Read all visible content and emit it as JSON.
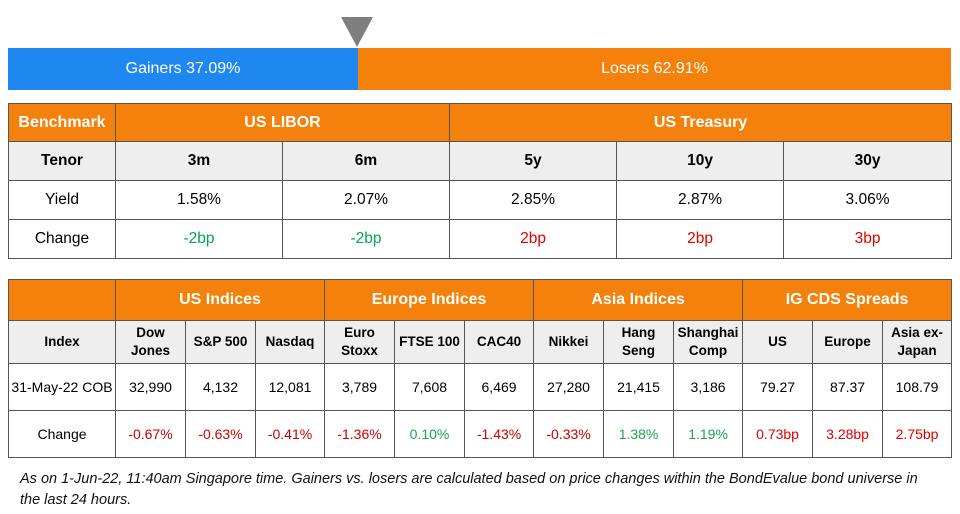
{
  "breadth": {
    "gainers_label": "Gainers 37.09%",
    "losers_label": "Losers 62.91%",
    "gainers_share": 0.3709,
    "colors": {
      "gainers": "#1e88f0",
      "losers": "#f4810b",
      "marker": "#7f7f7f"
    }
  },
  "rates": {
    "header": {
      "benchmark": "Benchmark",
      "libor": "US LIBOR",
      "treasury": "US Treasury"
    },
    "tenor_label": "Tenor",
    "tenors": [
      "3m",
      "6m",
      "5y",
      "10y",
      "30y"
    ],
    "yield_label": "Yield",
    "yields": [
      "1.58%",
      "2.07%",
      "2.85%",
      "2.87%",
      "3.06%"
    ],
    "change_label": "Change",
    "changes": [
      "-2bp",
      "-2bp",
      "2bp",
      "2bp",
      "3bp"
    ]
  },
  "indices": {
    "groups": {
      "us": "US Indices",
      "europe": "Europe Indices",
      "asia": "Asia Indices",
      "cds": "IG CDS Spreads"
    },
    "index_label": "Index",
    "columns": [
      "Dow Jones",
      "S&P 500",
      "Nasdaq",
      "Euro Stoxx",
      "FTSE 100",
      "CAC40",
      "Nikkei",
      "Hang Seng",
      "Shanghai Comp",
      "US",
      "Europe",
      "Asia ex-Japan"
    ],
    "date_label": "31-May-22 COB",
    "values": [
      "32,990",
      "4,132",
      "12,081",
      "3,789",
      "7,608",
      "6,469",
      "27,280",
      "21,415",
      "3,186",
      "79.27",
      "87.37",
      "108.79"
    ],
    "change_label": "Change",
    "changes": [
      "-0.67%",
      "-0.63%",
      "-0.41%",
      "-1.36%",
      "0.10%",
      "-1.43%",
      "-0.33%",
      "1.38%",
      "1.19%",
      "0.73bp",
      "3.28bp",
      "2.75bp"
    ]
  },
  "footnote": "As on 1-Jun-22, 11:40am Singapore time. Gainers vs. losers are calculated based on price changes within the BondEvalue bond universe in the last 24 hours."
}
